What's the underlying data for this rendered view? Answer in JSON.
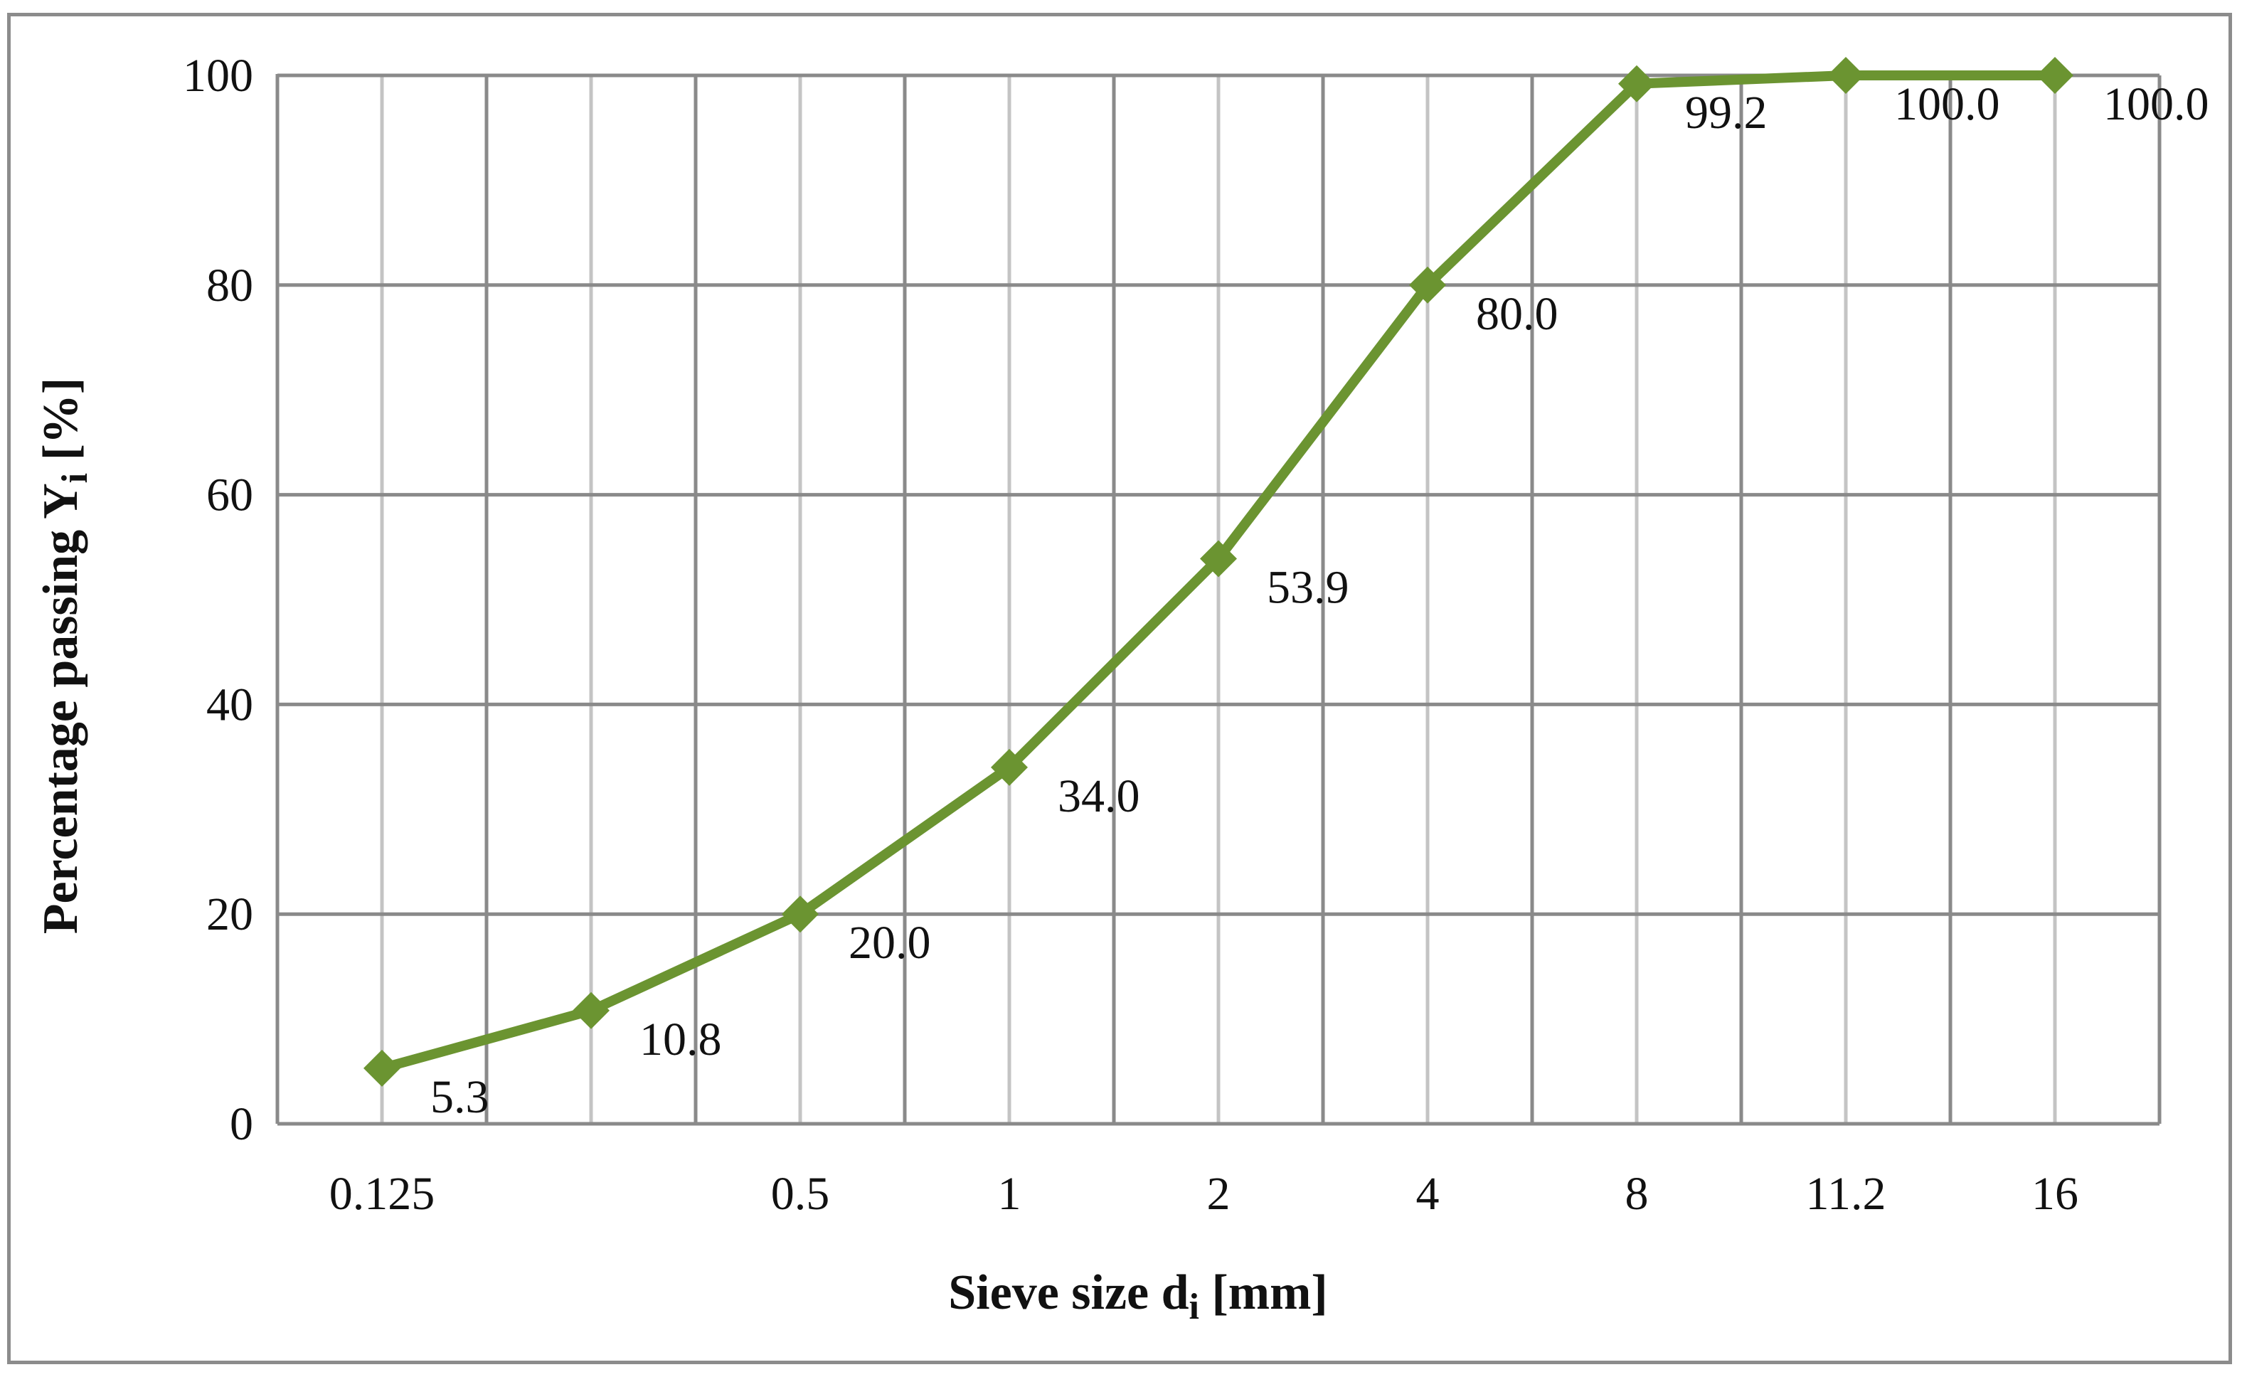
{
  "chart_data": {
    "type": "line",
    "xlabel": "Sieve size d",
    "xlabel_sub": "i",
    "xlabel_unit": " [mm]",
    "ylabel": "Percentage passing Y",
    "ylabel_sub": "i",
    "ylabel_unit": " [%]",
    "x_tick_labels": [
      "0.125",
      "",
      "0.5",
      "1",
      "2",
      "4",
      "8",
      "11.2",
      "16"
    ],
    "y_ticks": [
      0,
      20,
      40,
      60,
      80,
      100
    ],
    "ylim": [
      0,
      100
    ],
    "grid": true,
    "legend": "none",
    "series": [
      {
        "color": "#6b9431",
        "marker": "diamond",
        "points": [
          {
            "x": "0.125",
            "y": 5.3,
            "label": "5.3"
          },
          {
            "x": "",
            "y": 10.8,
            "label": "10.8"
          },
          {
            "x": "0.5",
            "y": 20.0,
            "label": "20.0"
          },
          {
            "x": "1",
            "y": 34.0,
            "label": "34.0"
          },
          {
            "x": "2",
            "y": 53.9,
            "label": "53.9"
          },
          {
            "x": "4",
            "y": 80.0,
            "label": "80.0"
          },
          {
            "x": "8",
            "y": 99.2,
            "label": "99.2"
          },
          {
            "x": "11.2",
            "y": 100.0,
            "label": "100.0"
          },
          {
            "x": "16",
            "y": 100.0,
            "label": "100.0"
          }
        ]
      }
    ]
  },
  "colors": {
    "gridline": "#8a8a8a",
    "gridline_light": "#c4c4c4",
    "series": "#6b9431",
    "frame": "#8c8c8c"
  }
}
